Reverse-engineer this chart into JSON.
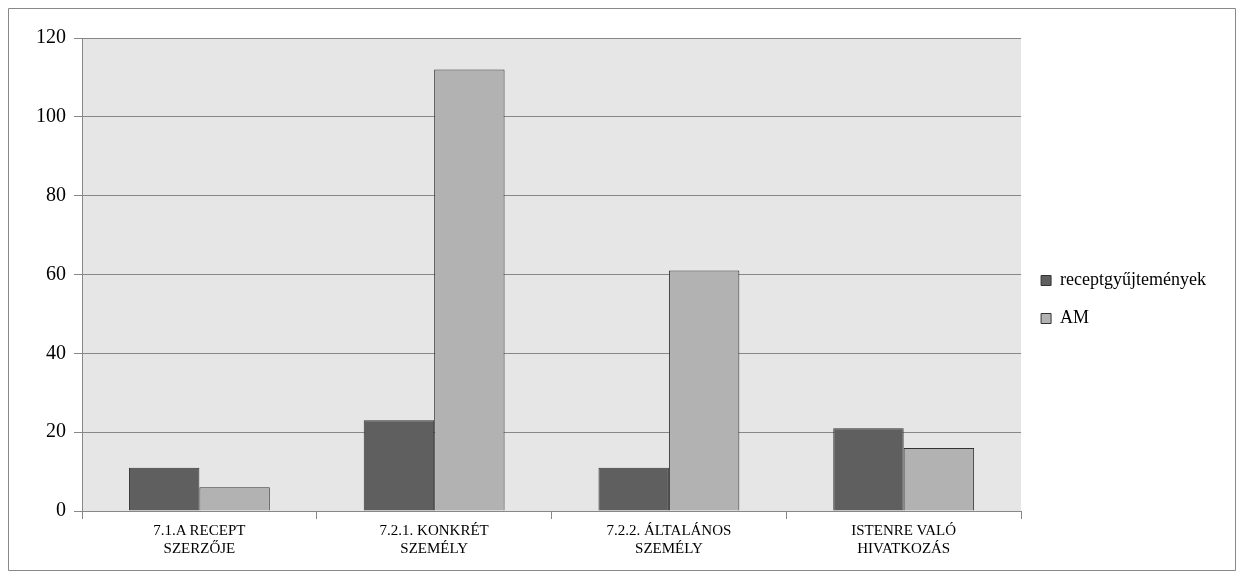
{
  "chart_data": {
    "type": "bar",
    "categories": [
      "7.1.A RECEPT SZERZŐJE",
      "7.2.1. KONKRÉT SZEMÉLY",
      "7.2.2. ÁLTALÁNOS SZEMÉLY",
      "ISTENRE VALÓ HIVATKOZÁS"
    ],
    "series": [
      {
        "name": "receptgyűjtemények",
        "color": "#5f5f5f",
        "values": [
          11,
          23,
          11,
          21
        ]
      },
      {
        "name": "AM",
        "color": "#b2b2b2",
        "values": [
          6,
          112,
          61,
          16
        ]
      }
    ],
    "ylim": [
      0,
      120
    ],
    "yticks": [
      0,
      20,
      40,
      60,
      80,
      100,
      120
    ],
    "grid": "y",
    "legend": "right"
  }
}
